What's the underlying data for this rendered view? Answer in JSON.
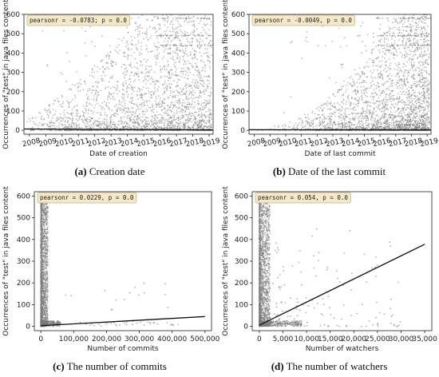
{
  "colors": {
    "points": "#7a7a7a",
    "regression": "#111111",
    "annotation_bg": "#f5e9c9"
  },
  "chart_data": [
    {
      "id": "a",
      "type": "scatter",
      "caption_letter": "(a)",
      "caption_text": "Creation date",
      "xlabel": "Date of creation",
      "ylabel": "Occurrences of \"test\" in java files content",
      "annotation": "pearsonr = -0.0783; p = 0.0",
      "x_scale": "date",
      "xlim": [
        "2007-09-01",
        "2019-04-01"
      ],
      "ylim": [
        -20,
        600
      ],
      "xticks": [
        "2008",
        "2009",
        "2010",
        "2011",
        "2012",
        "2013",
        "2014",
        "2015",
        "2016",
        "2017",
        "2018",
        "2019"
      ],
      "yticks": [
        0,
        100,
        200,
        300,
        400,
        500,
        600
      ],
      "regression_line": [
        {
          "x": "2007-09-01",
          "y": 7
        },
        {
          "x": "2019-04-01",
          "y": 2
        }
      ]
    },
    {
      "id": "b",
      "type": "scatter",
      "caption_letter": "(b)",
      "caption_text": "Date of the last commit",
      "xlabel": "Date of last commit",
      "ylabel": "Occurrences of \"test\" in java files content",
      "annotation": "pearsonr = -0.0049, p = 0.0",
      "x_scale": "date",
      "xlim": [
        "2007-09-01",
        "2019-04-01"
      ],
      "ylim": [
        -20,
        600
      ],
      "xticks": [
        "2008",
        "2009",
        "2010",
        "2011",
        "2012",
        "2013",
        "2014",
        "2015",
        "2016",
        "2017",
        "2018",
        "2019"
      ],
      "yticks": [
        0,
        100,
        200,
        300,
        400,
        500,
        600
      ],
      "regression_line": [
        {
          "x": "2007-09-01",
          "y": 3
        },
        {
          "x": "2019-04-01",
          "y": 2
        }
      ]
    },
    {
      "id": "c",
      "type": "scatter",
      "caption_letter": "(c)",
      "caption_text": "The number of commits",
      "xlabel": "Number of commits",
      "ylabel": "Occurrences of \"test\" in java files content",
      "annotation": "pearsonr = 0.0229, p = 0.0",
      "x_scale": "linear",
      "xlim": [
        -20000,
        520000
      ],
      "ylim": [
        -20,
        620
      ],
      "xticks": [
        0,
        100000,
        200000,
        300000,
        400000,
        500000
      ],
      "xtick_labels": [
        "0",
        "100,000",
        "200,000",
        "300,000",
        "400,000",
        "500,000"
      ],
      "yticks": [
        0,
        100,
        200,
        300,
        400,
        500,
        600
      ],
      "regression_line": [
        {
          "x": 0,
          "y": 3
        },
        {
          "x": 500000,
          "y": 45
        }
      ]
    },
    {
      "id": "d",
      "type": "scatter",
      "caption_letter": "(d)",
      "caption_text": "The number of watchers",
      "xlabel": "Number of watchers",
      "ylabel": "Occurrences of \"test\" in java files content",
      "annotation": "pearsonr = 0.054, p = 0.0",
      "x_scale": "linear",
      "xlim": [
        -1500,
        36500
      ],
      "ylim": [
        -20,
        620
      ],
      "xticks": [
        0,
        5000,
        10000,
        15000,
        20000,
        25000,
        30000,
        35000
      ],
      "xtick_labels": [
        "0",
        "5,000",
        "10,000",
        "15,000",
        "20,000",
        "25,000",
        "30,000",
        "35,000"
      ],
      "yticks": [
        0,
        100,
        200,
        300,
        400,
        500,
        600
      ],
      "regression_line": [
        {
          "x": 0,
          "y": 5
        },
        {
          "x": 35000,
          "y": 378
        }
      ]
    }
  ]
}
